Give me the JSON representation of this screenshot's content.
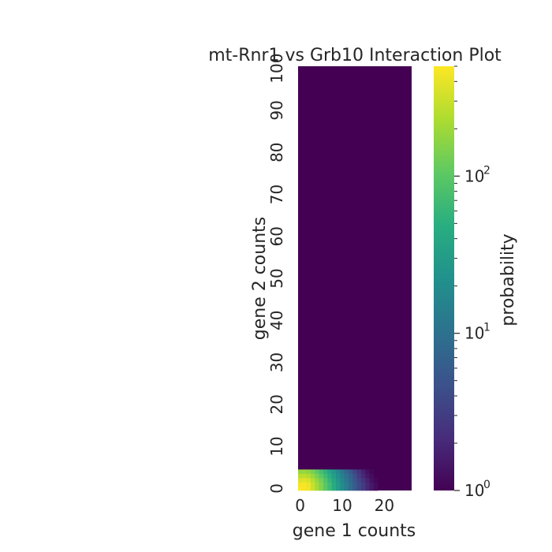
{
  "chart_data": {
    "type": "heatmap",
    "title": "mt-Rnr1 vs Grb10 Interaction Plot",
    "xlabel": "gene 1 counts",
    "ylabel": "gene 2 counts",
    "x_range": [
      0,
      26
    ],
    "y_range": [
      0,
      100
    ],
    "x_ticks": [
      "0",
      "10",
      "20"
    ],
    "y_ticks": [
      "0",
      "10",
      "20",
      "30",
      "40",
      "50",
      "60",
      "70",
      "80",
      "90",
      "100"
    ],
    "colormap": "viridis",
    "colorbar": {
      "label": "probability",
      "scale": "log",
      "range": [
        1,
        500
      ],
      "ticks": [
        {
          "base": "10",
          "exp": "0",
          "value": 1
        },
        {
          "base": "10",
          "exp": "1",
          "value": 10
        },
        {
          "base": "10",
          "exp": "2",
          "value": 100
        }
      ]
    },
    "values": [
      [
        500,
        480,
        450,
        300,
        220,
        150,
        100,
        70,
        45,
        30,
        20,
        14,
        9,
        6,
        4,
        3,
        2,
        1.5,
        1.2,
        1,
        1,
        1,
        1,
        1,
        1,
        1,
        1
      ],
      [
        460,
        470,
        420,
        300,
        210,
        150,
        100,
        70,
        45,
        30,
        20,
        14,
        9,
        6,
        4,
        3,
        2,
        1.5,
        1.2,
        1,
        1,
        1,
        1,
        1,
        1,
        1,
        1
      ],
      [
        360,
        380,
        340,
        250,
        180,
        130,
        90,
        60,
        40,
        27,
        18,
        12,
        8,
        5,
        3.5,
        2.5,
        1.8,
        1.3,
        1.1,
        1,
        1,
        1,
        1,
        1,
        1,
        1,
        1
      ],
      [
        260,
        270,
        240,
        190,
        140,
        100,
        70,
        48,
        32,
        22,
        15,
        10,
        7,
        4.5,
        3,
        2,
        1.5,
        1.2,
        1,
        1,
        1,
        1,
        1,
        1,
        1,
        1,
        1
      ],
      [
        180,
        190,
        170,
        140,
        105,
        78,
        55,
        38,
        26,
        18,
        12,
        8,
        5.5,
        3.5,
        2.5,
        1.8,
        1.3,
        1.1,
        1,
        1,
        1,
        1,
        1,
        1,
        1,
        1,
        1
      ]
    ]
  }
}
